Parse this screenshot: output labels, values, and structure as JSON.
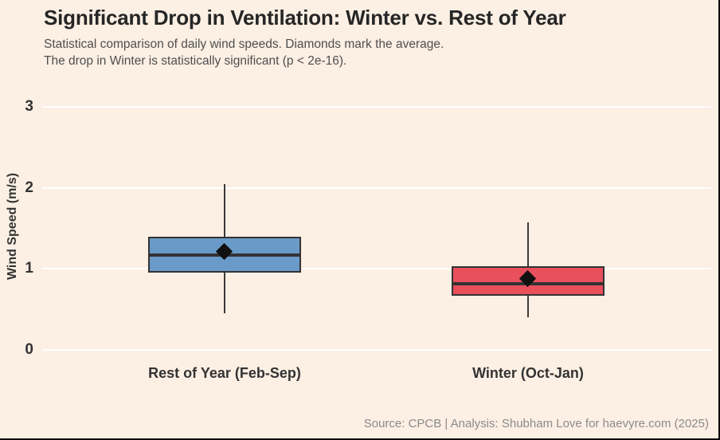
{
  "header": {
    "title": "Significant Drop in Ventilation: Winter vs. Rest of Year",
    "subtitle_line1": "Statistical comparison of daily wind speeds. Diamonds mark the average.",
    "subtitle_line2": "The drop in Winter is statistically significant (p < 2e-16)."
  },
  "footer": {
    "source": "Source: CPCB | Analysis: Shubham Love for haevyre.com (2025)"
  },
  "colors": {
    "background": "#FCEFE4",
    "gridline": "#FFFFFF",
    "box_outline": "#333333",
    "mean_diamond": "#111111",
    "title_text": "#262626",
    "subtitle_text": "#4F4F4F",
    "footer_text": "#8B8B8B",
    "rest_of_year_fill": "#6A9BC8",
    "winter_fill": "#E8505C"
  },
  "chart_data": {
    "type": "boxplot",
    "title": "Significant Drop in Ventilation: Winter vs. Rest of Year",
    "subtitle": "Statistical comparison of daily wind speeds. Diamonds mark the average. The drop in Winter is statistically significant (p < 2e-16).",
    "xlabel": "",
    "ylabel": "Wind Speed (m/s)",
    "ylim": [
      0,
      3
    ],
    "yticks": [
      0,
      1,
      2,
      3
    ],
    "grid": true,
    "mean_marker": "diamond",
    "categories": [
      "Rest of Year (Feb-Sep)",
      "Winter (Oct-Jan)"
    ],
    "series": [
      {
        "name": "Rest of Year (Feb-Sep)",
        "color": "#6A9BC8",
        "whisker_low": 0.45,
        "q1": 0.95,
        "median": 1.17,
        "q3": 1.4,
        "whisker_high": 2.05,
        "mean": 1.21
      },
      {
        "name": "Winter (Oct-Jan)",
        "color": "#E8505C",
        "whisker_low": 0.4,
        "q1": 0.67,
        "median": 0.82,
        "q3": 1.03,
        "whisker_high": 1.57,
        "mean": 0.88
      }
    ]
  }
}
